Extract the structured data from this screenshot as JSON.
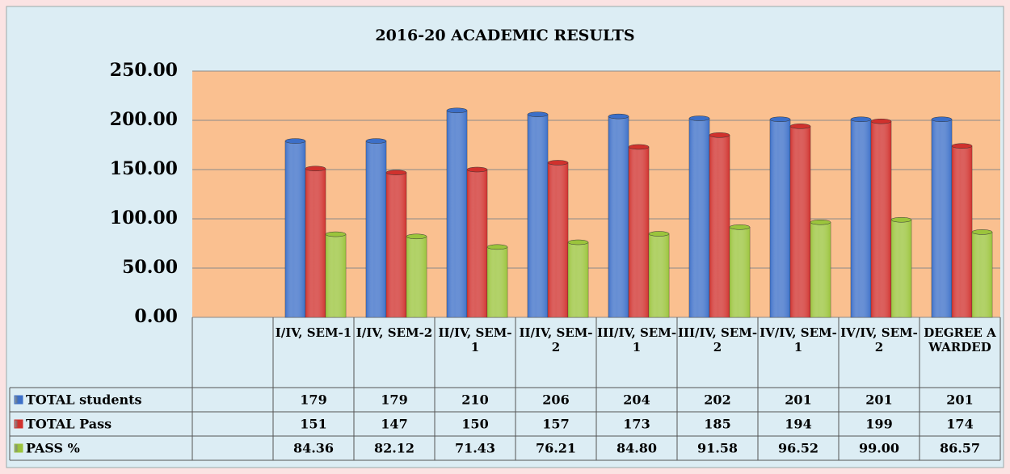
{
  "chart_data": {
    "type": "bar",
    "title": "2016-20 ACADEMIC RESULTS",
    "categories": [
      null,
      "I/IV, SEM-1",
      "I/IV, SEM-2",
      "II/IV, SEM-1",
      "II/IV, SEM-2",
      "III/IV, SEM-1",
      "III/IV, SEM-2",
      "IV/IV, SEM-1",
      "IV/IV, SEM-2",
      "DEGREE AWARDED"
    ],
    "series": [
      {
        "name": "TOTAL students",
        "color": "#3c6fc8",
        "values": [
          null,
          179,
          179,
          210,
          206,
          204,
          202,
          201,
          201,
          201
        ]
      },
      {
        "name": "TOTAL Pass",
        "color": "#d0312d",
        "values": [
          null,
          151,
          147,
          150,
          157,
          173,
          185,
          194,
          199,
          174
        ]
      },
      {
        "name": "PASS %",
        "color": "#9bc43c",
        "values": [
          null,
          84.36,
          82.12,
          71.43,
          76.21,
          84.8,
          91.58,
          96.52,
          99,
          86.57
        ],
        "value_labels": [
          null,
          "84.36",
          "82.12",
          "71.43",
          "76.21",
          "84.80",
          "91.58",
          "96.52",
          "99.00",
          "86.57"
        ]
      }
    ],
    "ylim": [
      0,
      250
    ],
    "yticks": [
      {
        "value": 0,
        "label": "0.00"
      },
      {
        "value": 50,
        "label": "50.00"
      },
      {
        "value": 100,
        "label": "100.00"
      },
      {
        "value": 150,
        "label": "150.00"
      },
      {
        "value": 200,
        "label": "200.00"
      },
      {
        "value": 250,
        "label": "250.00"
      }
    ],
    "grid": true,
    "plot_background": "#fac090",
    "data_table": true
  }
}
